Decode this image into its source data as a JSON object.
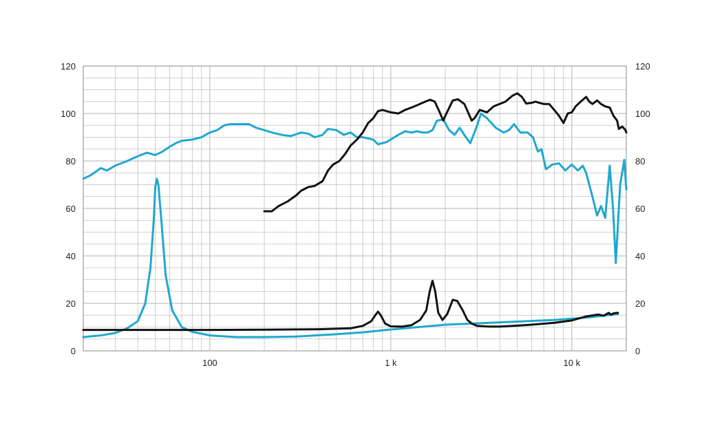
{
  "chart_data": {
    "type": "line",
    "title": "",
    "xlabel": "",
    "ylabel": "",
    "x_scale": "log",
    "xlim": [
      20,
      20000
    ],
    "ylim": [
      0,
      120
    ],
    "grid": true,
    "legend": "none",
    "y_ticks": [
      0,
      20,
      40,
      60,
      80,
      100,
      120
    ],
    "y_tick_labels": [
      "0",
      "20",
      "40",
      "60",
      "80",
      "100",
      "120"
    ],
    "x_ticks": [
      100,
      1000,
      10000
    ],
    "x_tick_labels": [
      "100",
      "1 k",
      "10 k"
    ],
    "colors": {
      "blue": "#1ea8d0",
      "black": "#111111",
      "grid": "#c0c0c0",
      "frame": "#8a8a8a"
    },
    "series": [
      {
        "color": "#1ea8d0",
        "points": [
          [
            20,
            72.5
          ],
          [
            22,
            74
          ],
          [
            25,
            77
          ],
          [
            27,
            76
          ],
          [
            30,
            78
          ],
          [
            35,
            80
          ],
          [
            40,
            82
          ],
          [
            45,
            83.5
          ],
          [
            50,
            82.5
          ],
          [
            55,
            84
          ],
          [
            60,
            86
          ],
          [
            65,
            87.5
          ],
          [
            70,
            88.5
          ],
          [
            80,
            89
          ],
          [
            90,
            90
          ],
          [
            100,
            92
          ],
          [
            110,
            93
          ],
          [
            120,
            95
          ],
          [
            130,
            95.5
          ],
          [
            150,
            95.5
          ],
          [
            165,
            95.5
          ],
          [
            180,
            94
          ],
          [
            200,
            93
          ],
          [
            220,
            92
          ],
          [
            250,
            91
          ],
          [
            280,
            90.5
          ],
          [
            320,
            92
          ],
          [
            350,
            91.5
          ],
          [
            380,
            90
          ],
          [
            420,
            91
          ],
          [
            450,
            93.5
          ],
          [
            500,
            93
          ],
          [
            550,
            91
          ],
          [
            600,
            92
          ],
          [
            650,
            90
          ],
          [
            700,
            90
          ],
          [
            800,
            89
          ],
          [
            850,
            87
          ],
          [
            950,
            88
          ],
          [
            1100,
            91
          ],
          [
            1200,
            92.5
          ],
          [
            1300,
            92
          ],
          [
            1400,
            92.5
          ],
          [
            1500,
            92
          ],
          [
            1600,
            92
          ],
          [
            1700,
            93
          ],
          [
            1800,
            97
          ],
          [
            1950,
            97.5
          ],
          [
            2100,
            93
          ],
          [
            2250,
            91
          ],
          [
            2400,
            94
          ],
          [
            2600,
            90
          ],
          [
            2750,
            87.5
          ],
          [
            3000,
            95
          ],
          [
            3150,
            100
          ],
          [
            3400,
            98
          ],
          [
            3800,
            94
          ],
          [
            4200,
            92
          ],
          [
            4500,
            93
          ],
          [
            4800,
            95.5
          ],
          [
            5200,
            92
          ],
          [
            5700,
            92
          ],
          [
            6100,
            90
          ],
          [
            6500,
            84
          ],
          [
            6800,
            85
          ],
          [
            7200,
            76.5
          ],
          [
            7800,
            78.5
          ],
          [
            8500,
            79
          ],
          [
            9200,
            76
          ],
          [
            10000,
            78.5
          ],
          [
            10800,
            76
          ],
          [
            11500,
            78
          ],
          [
            12000,
            75
          ],
          [
            13000,
            65
          ],
          [
            13800,
            57
          ],
          [
            14500,
            61
          ],
          [
            15300,
            56
          ],
          [
            16200,
            78
          ],
          [
            16900,
            60
          ],
          [
            17500,
            37
          ],
          [
            18500,
            70
          ],
          [
            19500,
            80.5
          ],
          [
            20000,
            68
          ]
        ]
      },
      {
        "color": "#1ea8d0",
        "points": [
          [
            20,
            5.8
          ],
          [
            25,
            6.5
          ],
          [
            30,
            7.5
          ],
          [
            35,
            9.5
          ],
          [
            40,
            12.5
          ],
          [
            44,
            20
          ],
          [
            47,
            35
          ],
          [
            49,
            55
          ],
          [
            50,
            69
          ],
          [
            51,
            72.5
          ],
          [
            52,
            70
          ],
          [
            54,
            55
          ],
          [
            57,
            32
          ],
          [
            62,
            17
          ],
          [
            70,
            10
          ],
          [
            80,
            8
          ],
          [
            100,
            6.5
          ],
          [
            140,
            5.8
          ],
          [
            200,
            5.8
          ],
          [
            300,
            6
          ],
          [
            500,
            7
          ],
          [
            700,
            7.8
          ],
          [
            1000,
            9
          ],
          [
            2000,
            11
          ],
          [
            4000,
            12
          ],
          [
            8000,
            13
          ],
          [
            12000,
            14
          ],
          [
            18000,
            15.5
          ]
        ]
      },
      {
        "color": "#111111",
        "points": [
          [
            20,
            8.8
          ],
          [
            100,
            8.8
          ],
          [
            200,
            8.9
          ],
          [
            400,
            9.1
          ],
          [
            600,
            9.5
          ],
          [
            700,
            10.5
          ],
          [
            780,
            12.5
          ],
          [
            830,
            15.5
          ],
          [
            850,
            16.5
          ],
          [
            880,
            15
          ],
          [
            930,
            11.5
          ],
          [
            1000,
            10.3
          ],
          [
            1150,
            10.2
          ],
          [
            1300,
            10.8
          ],
          [
            1450,
            13
          ],
          [
            1570,
            17
          ],
          [
            1640,
            25
          ],
          [
            1700,
            29.5
          ],
          [
            1760,
            25
          ],
          [
            1830,
            16
          ],
          [
            1930,
            13
          ],
          [
            2050,
            15.5
          ],
          [
            2200,
            21.5
          ],
          [
            2330,
            21
          ],
          [
            2500,
            17
          ],
          [
            2650,
            13
          ],
          [
            2800,
            11.5
          ],
          [
            3000,
            10.5
          ],
          [
            3500,
            10.2
          ],
          [
            4000,
            10.2
          ],
          [
            5000,
            10.6
          ],
          [
            6000,
            11
          ],
          [
            8000,
            11.8
          ],
          [
            10000,
            12.8
          ],
          [
            12000,
            14.5
          ],
          [
            14000,
            15.3
          ],
          [
            15000,
            14.8
          ],
          [
            16000,
            16
          ],
          [
            16500,
            15.2
          ],
          [
            17000,
            15.8
          ],
          [
            18000,
            16
          ]
        ]
      },
      {
        "color": "#111111",
        "points": [
          [
            200,
            58.8
          ],
          [
            220,
            58.8
          ],
          [
            240,
            61
          ],
          [
            270,
            63
          ],
          [
            300,
            65.5
          ],
          [
            320,
            67.5
          ],
          [
            350,
            69
          ],
          [
            380,
            69.5
          ],
          [
            420,
            71.5
          ],
          [
            450,
            76
          ],
          [
            480,
            78.5
          ],
          [
            520,
            80
          ],
          [
            560,
            83
          ],
          [
            600,
            86.5
          ],
          [
            650,
            89
          ],
          [
            700,
            92
          ],
          [
            750,
            96
          ],
          [
            800,
            98
          ],
          [
            850,
            101
          ],
          [
            900,
            101.5
          ],
          [
            1000,
            100.5
          ],
          [
            1100,
            100
          ],
          [
            1200,
            101.5
          ],
          [
            1300,
            102.5
          ],
          [
            1400,
            103.5
          ],
          [
            1550,
            105
          ],
          [
            1650,
            105.8
          ],
          [
            1750,
            105
          ],
          [
            1850,
            101
          ],
          [
            1950,
            97
          ],
          [
            2000,
            99
          ],
          [
            2200,
            105.5
          ],
          [
            2350,
            106
          ],
          [
            2550,
            104
          ],
          [
            2800,
            97
          ],
          [
            2900,
            98
          ],
          [
            3100,
            101.5
          ],
          [
            3400,
            100.5
          ],
          [
            3700,
            103
          ],
          [
            4300,
            105
          ],
          [
            4700,
            107.5
          ],
          [
            5000,
            108.5
          ],
          [
            5300,
            107
          ],
          [
            5600,
            104.2
          ],
          [
            6000,
            104.5
          ],
          [
            6300,
            105
          ],
          [
            6600,
            104.5
          ],
          [
            7000,
            104
          ],
          [
            7500,
            104
          ],
          [
            8000,
            101.5
          ],
          [
            8500,
            99
          ],
          [
            9000,
            96
          ],
          [
            9500,
            100
          ],
          [
            10000,
            100.5
          ],
          [
            10500,
            103
          ],
          [
            11200,
            105
          ],
          [
            12000,
            107
          ],
          [
            12500,
            105
          ],
          [
            13000,
            104
          ],
          [
            13800,
            105.5
          ],
          [
            14500,
            104
          ],
          [
            15300,
            103
          ],
          [
            16200,
            102.5
          ],
          [
            17000,
            99
          ],
          [
            17800,
            97
          ],
          [
            18200,
            93.5
          ],
          [
            19000,
            94.5
          ],
          [
            19800,
            93
          ],
          [
            20000,
            92
          ]
        ]
      }
    ]
  }
}
